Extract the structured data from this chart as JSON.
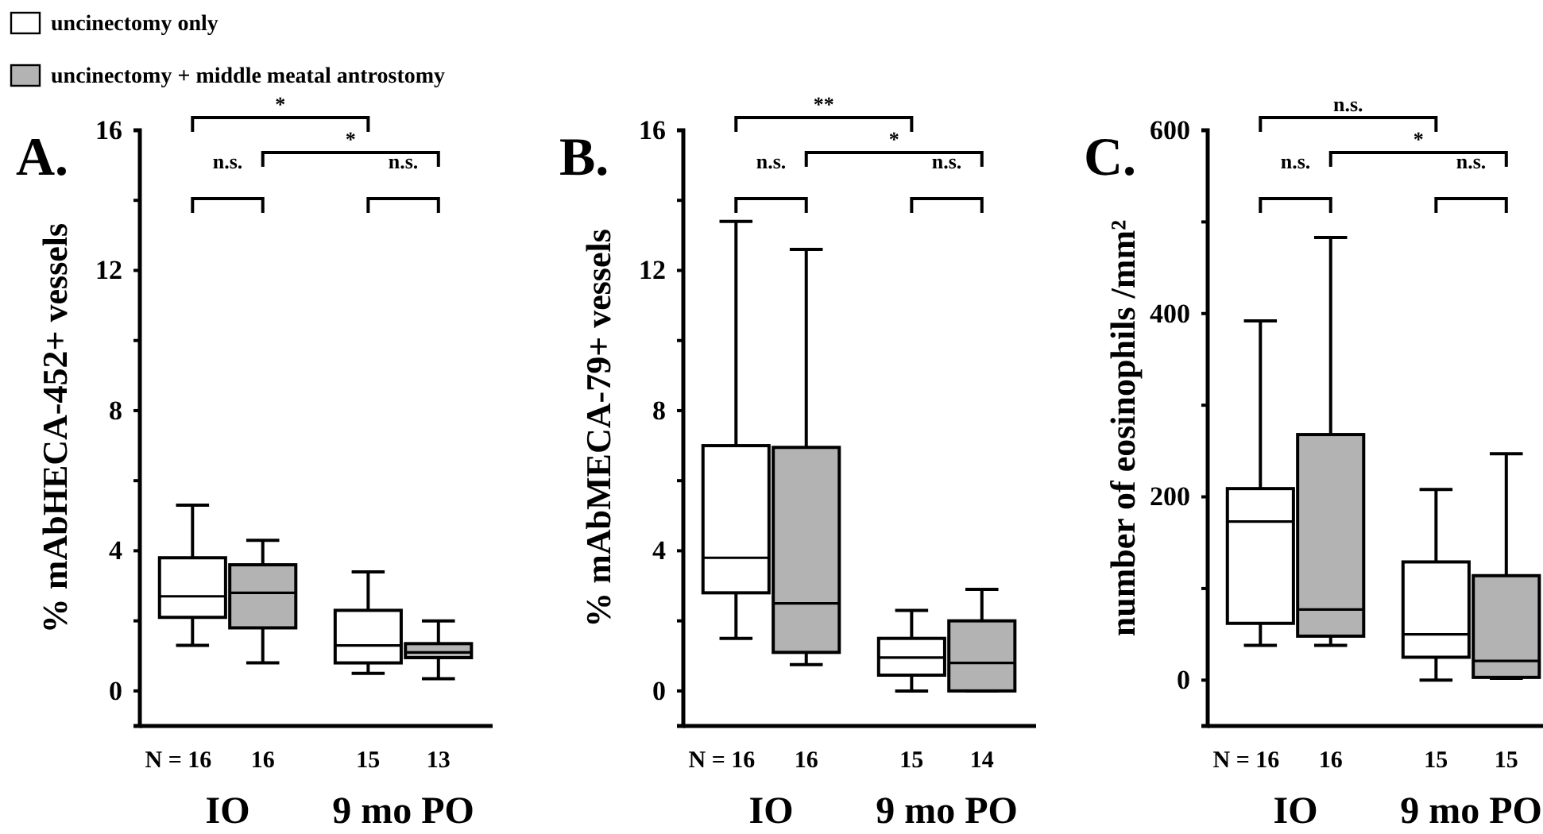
{
  "chart_data": [
    {
      "type": "box",
      "title": "A.",
      "ylabel": "% mAbHECA-452+ vessels",
      "categories": [
        "IO",
        "9 mo PO"
      ],
      "ylim": [
        -1,
        16
      ],
      "yticks": [
        0,
        {
          "value": 2,
          "label": null
        },
        4,
        {
          "value": 6,
          "label": null
        },
        8,
        {
          "value": 10,
          "label": null
        },
        12,
        {
          "value": 14,
          "label": null
        },
        16
      ],
      "legend": "top left",
      "series": [
        {
          "name": "uncinectomy only",
          "color": "#ffffff",
          "boxes": [
            {
              "low": 1.3,
              "q1": 2.1,
              "median": 2.7,
              "q3": 3.8,
              "high": 5.3
            },
            {
              "low": 0.5,
              "q1": 0.8,
              "median": 1.3,
              "q3": 2.3,
              "high": 3.4
            }
          ]
        },
        {
          "name": "uncinectomy + middle meatal antrostomy",
          "color": "#b3b3b3",
          "boxes": [
            {
              "low": 0.8,
              "q1": 1.8,
              "median": 2.8,
              "q3": 3.6,
              "high": 4.3
            },
            {
              "low": 0.35,
              "q1": 0.95,
              "median": 1.1,
              "q3": 1.35,
              "high": 2.0
            }
          ]
        }
      ],
      "annotations": [
        "N = 16",
        "16",
        "15",
        "13",
        "*",
        "n.s.",
        "*",
        "n.s."
      ]
    },
    {
      "type": "box",
      "title": "B.",
      "ylabel": "% mAbMECA-79+ vessels",
      "categories": [
        "IO",
        "9 mo PO"
      ],
      "ylim": [
        -1,
        16
      ],
      "yticks": [
        0,
        {
          "value": 2,
          "label": null
        },
        4,
        {
          "value": 6,
          "label": null
        },
        8,
        {
          "value": 10,
          "label": null
        },
        12,
        {
          "value": 14,
          "label": null
        },
        16
      ],
      "series": [
        {
          "color": "#ffffff",
          "boxes": [
            {
              "low": 1.5,
              "q1": 2.8,
              "median": 3.8,
              "q3": 7.0,
              "high": 13.4
            },
            {
              "low": 0,
              "q1": 0.45,
              "median": 0.95,
              "q3": 1.5,
              "high": 2.3
            }
          ]
        },
        {
          "color": "#b3b3b3",
          "boxes": [
            {
              "low": 0.75,
              "q1": 1.1,
              "median": 2.5,
              "q3": 6.95,
              "high": 12.6
            },
            {
              "low": 0,
              "q1": 0,
              "median": 0.8,
              "q3": 2.0,
              "high": 2.9
            }
          ]
        }
      ],
      "annotations": [
        "N = 16",
        "16",
        "15",
        "14",
        "**",
        "n.s.",
        "*",
        "n.s."
      ]
    },
    {
      "type": "box",
      "title": "C.",
      "ylabel": "number of eosinophils /mm²",
      "categories": [
        "IO",
        "9 mo PO"
      ],
      "ylim": [
        -50,
        600
      ],
      "yticks": [
        0,
        {
          "value": 100,
          "label": null
        },
        200,
        {
          "value": 300,
          "label": null
        },
        400,
        {
          "value": 500,
          "label": null
        },
        600
      ],
      "series": [
        {
          "color": "#ffffff",
          "boxes": [
            {
              "low": 38,
              "q1": 62,
              "median": 173,
              "q3": 209,
              "high": 392
            },
            {
              "low": 0,
              "q1": 25,
              "median": 50,
              "q3": 129,
              "high": 208
            }
          ]
        },
        {
          "color": "#b3b3b3",
          "boxes": [
            {
              "low": 38,
              "q1": 48,
              "median": 77,
              "q3": 268,
              "high": 483
            },
            {
              "low": 2,
              "q1": 3,
              "median": 21,
              "q3": 114,
              "high": 247
            }
          ]
        }
      ],
      "annotations": [
        "N = 16",
        "16",
        "15",
        "15",
        "n.s.",
        "n.s.",
        "*",
        "n.s."
      ]
    }
  ]
}
